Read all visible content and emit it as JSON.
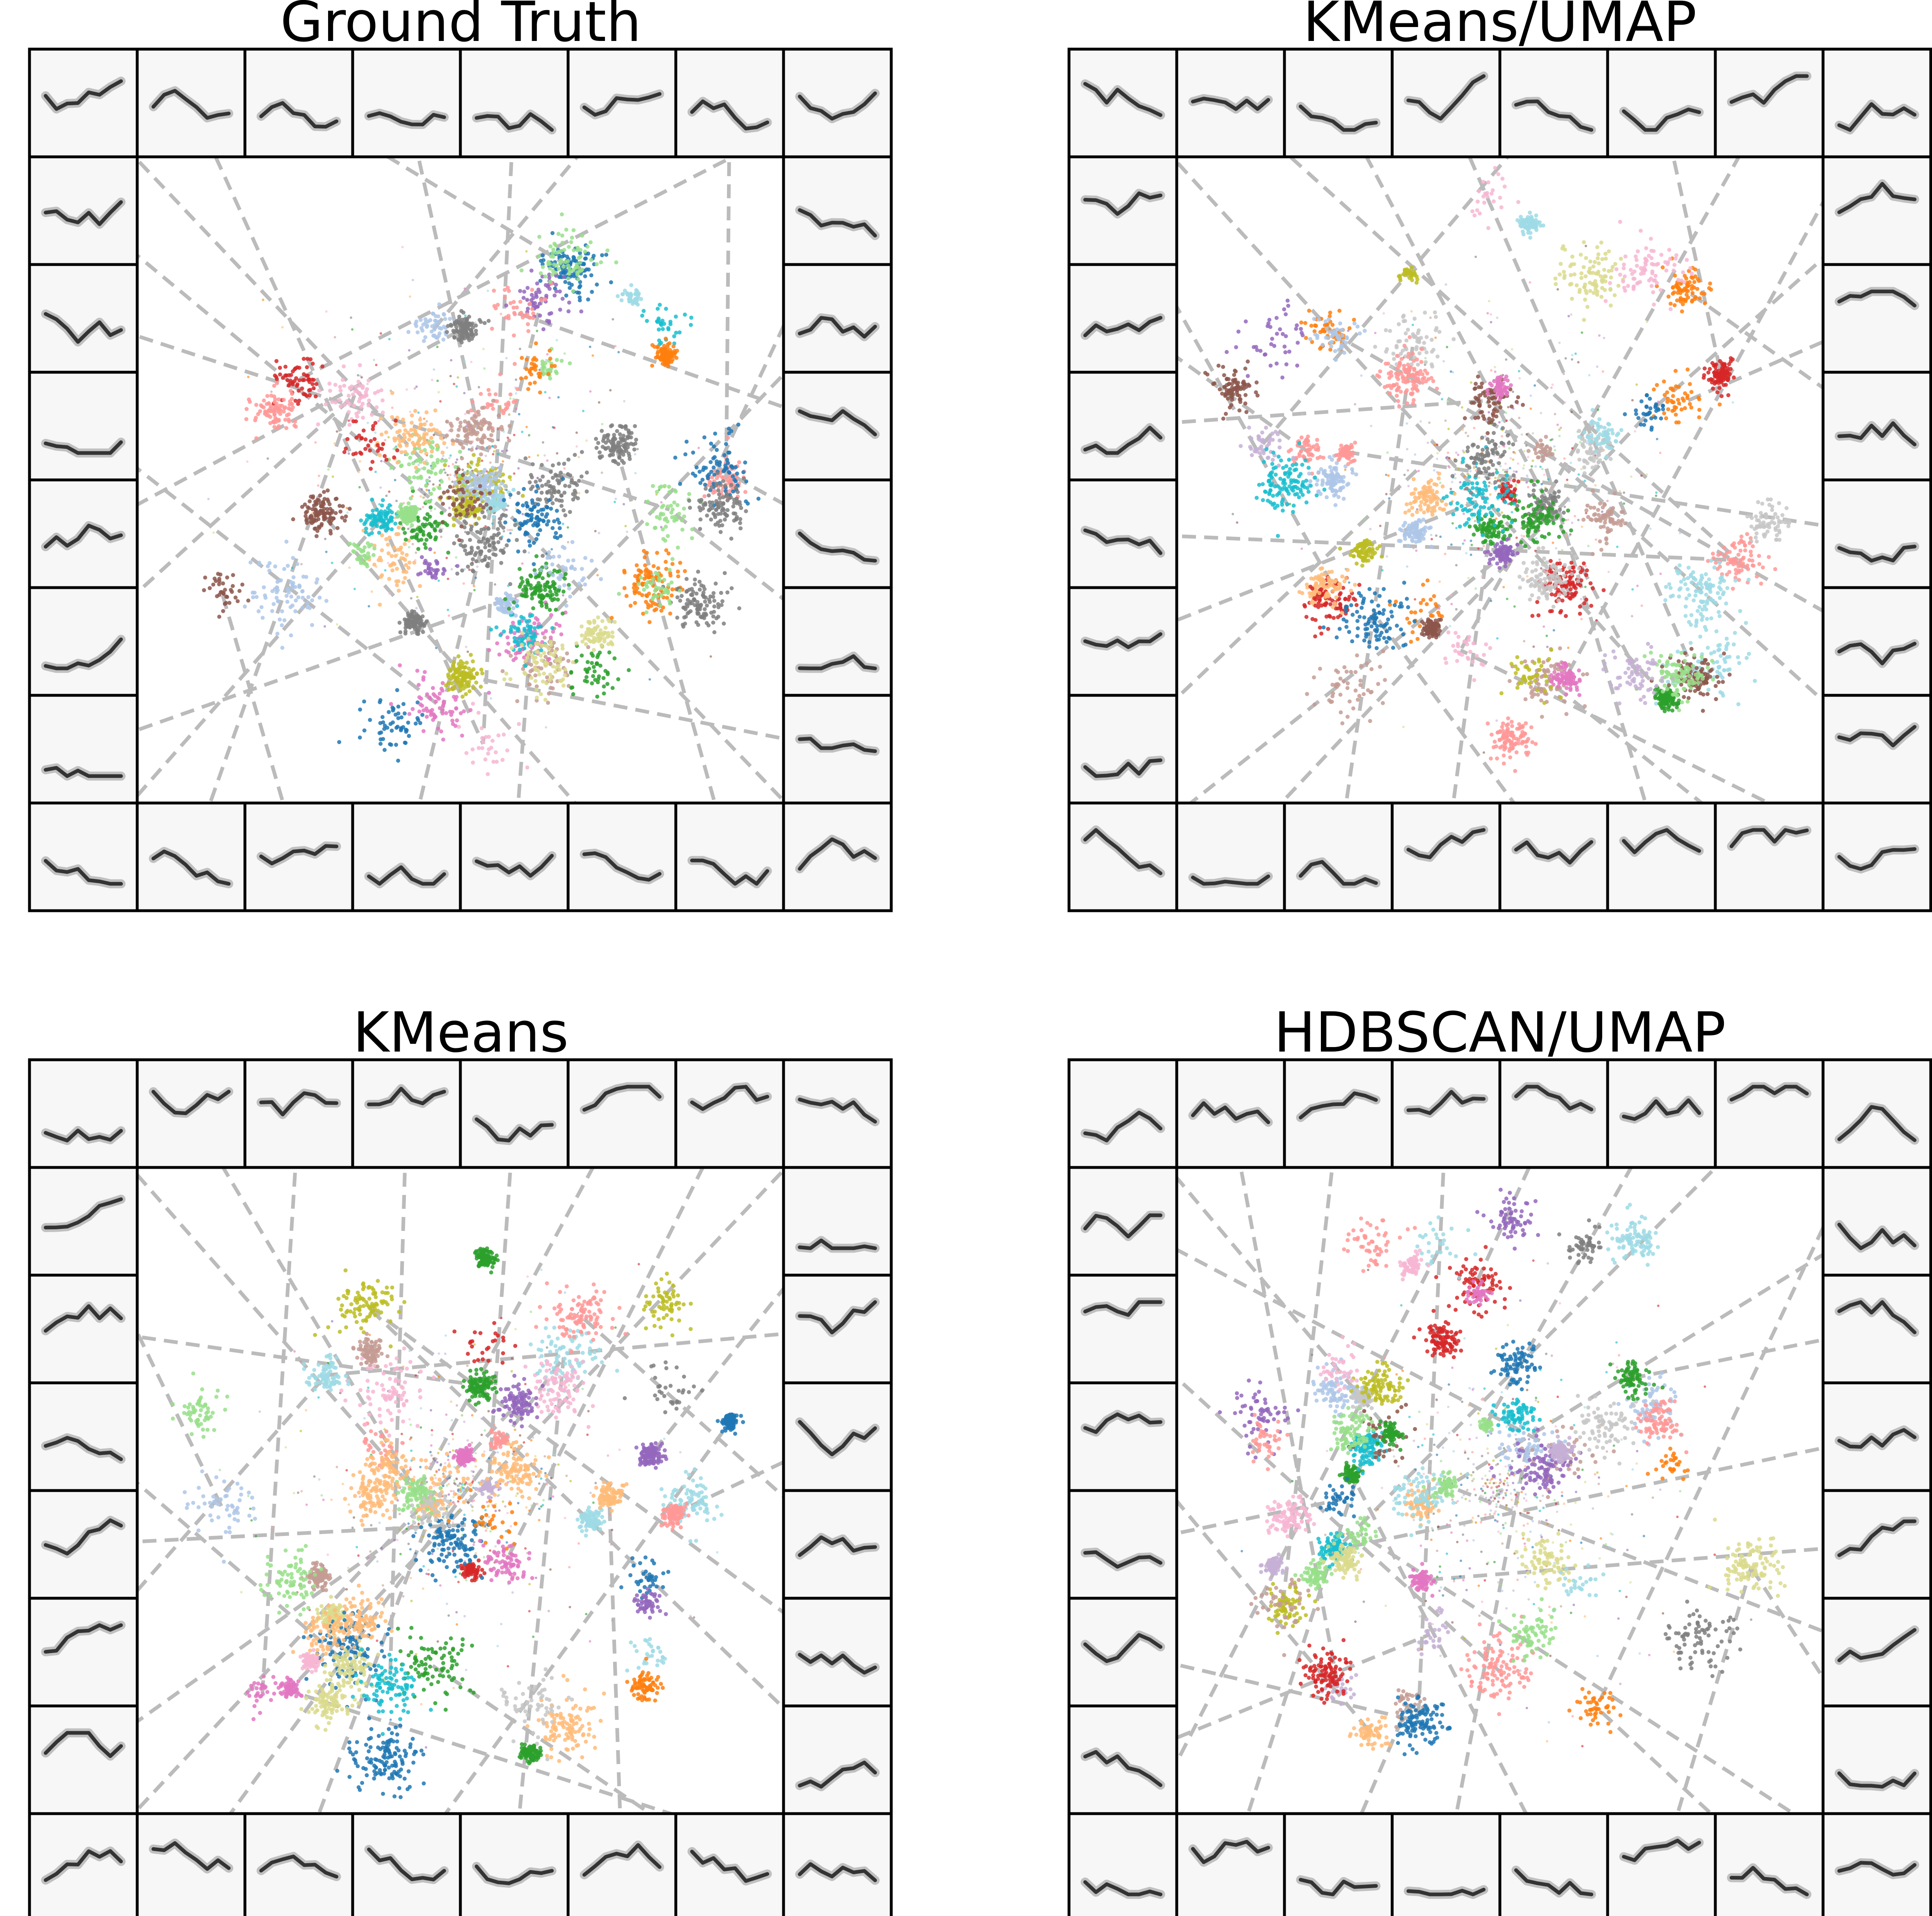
{
  "chart_data": [
    {
      "type": "scatter",
      "title": "Ground Truth",
      "xlabel": "",
      "ylabel": "",
      "grid": false,
      "legend": "none",
      "border_thumbnails": 32,
      "thumbnail_content": "spectrogram",
      "connector_style": "dashed-gray",
      "x": [],
      "y": []
    },
    {
      "type": "scatter",
      "title": "KMeans/UMAP",
      "xlabel": "",
      "ylabel": "",
      "grid": false,
      "legend": "none",
      "border_thumbnails": 32,
      "thumbnail_content": "spectrogram",
      "connector_style": "dashed-gray",
      "x": [],
      "y": []
    },
    {
      "type": "scatter",
      "title": "KMeans",
      "xlabel": "",
      "ylabel": "",
      "grid": false,
      "legend": "none",
      "border_thumbnails": 32,
      "thumbnail_content": "spectrogram",
      "connector_style": "dashed-gray",
      "x": [],
      "y": []
    },
    {
      "type": "scatter",
      "title": "HDBSCAN/UMAP",
      "xlabel": "",
      "ylabel": "",
      "grid": false,
      "legend": "none",
      "border_thumbnails": 32,
      "thumbnail_content": "spectrogram",
      "connector_style": "dashed-gray",
      "x": [],
      "y": []
    }
  ],
  "palette": [
    "#1f77b4",
    "#aec7e8",
    "#ff7f0e",
    "#ffbb78",
    "#2ca02c",
    "#98df8a",
    "#d62728",
    "#ff9896",
    "#9467bd",
    "#c5b0d5",
    "#8c564b",
    "#c49c94",
    "#e377c2",
    "#f7b6d2",
    "#7f7f7f",
    "#c7c7c7",
    "#bcbd22",
    "#dbdb8d",
    "#17becf",
    "#9edae5"
  ],
  "connector_color": "#bbbbbb",
  "thumb_background": "#f7f7f7"
}
